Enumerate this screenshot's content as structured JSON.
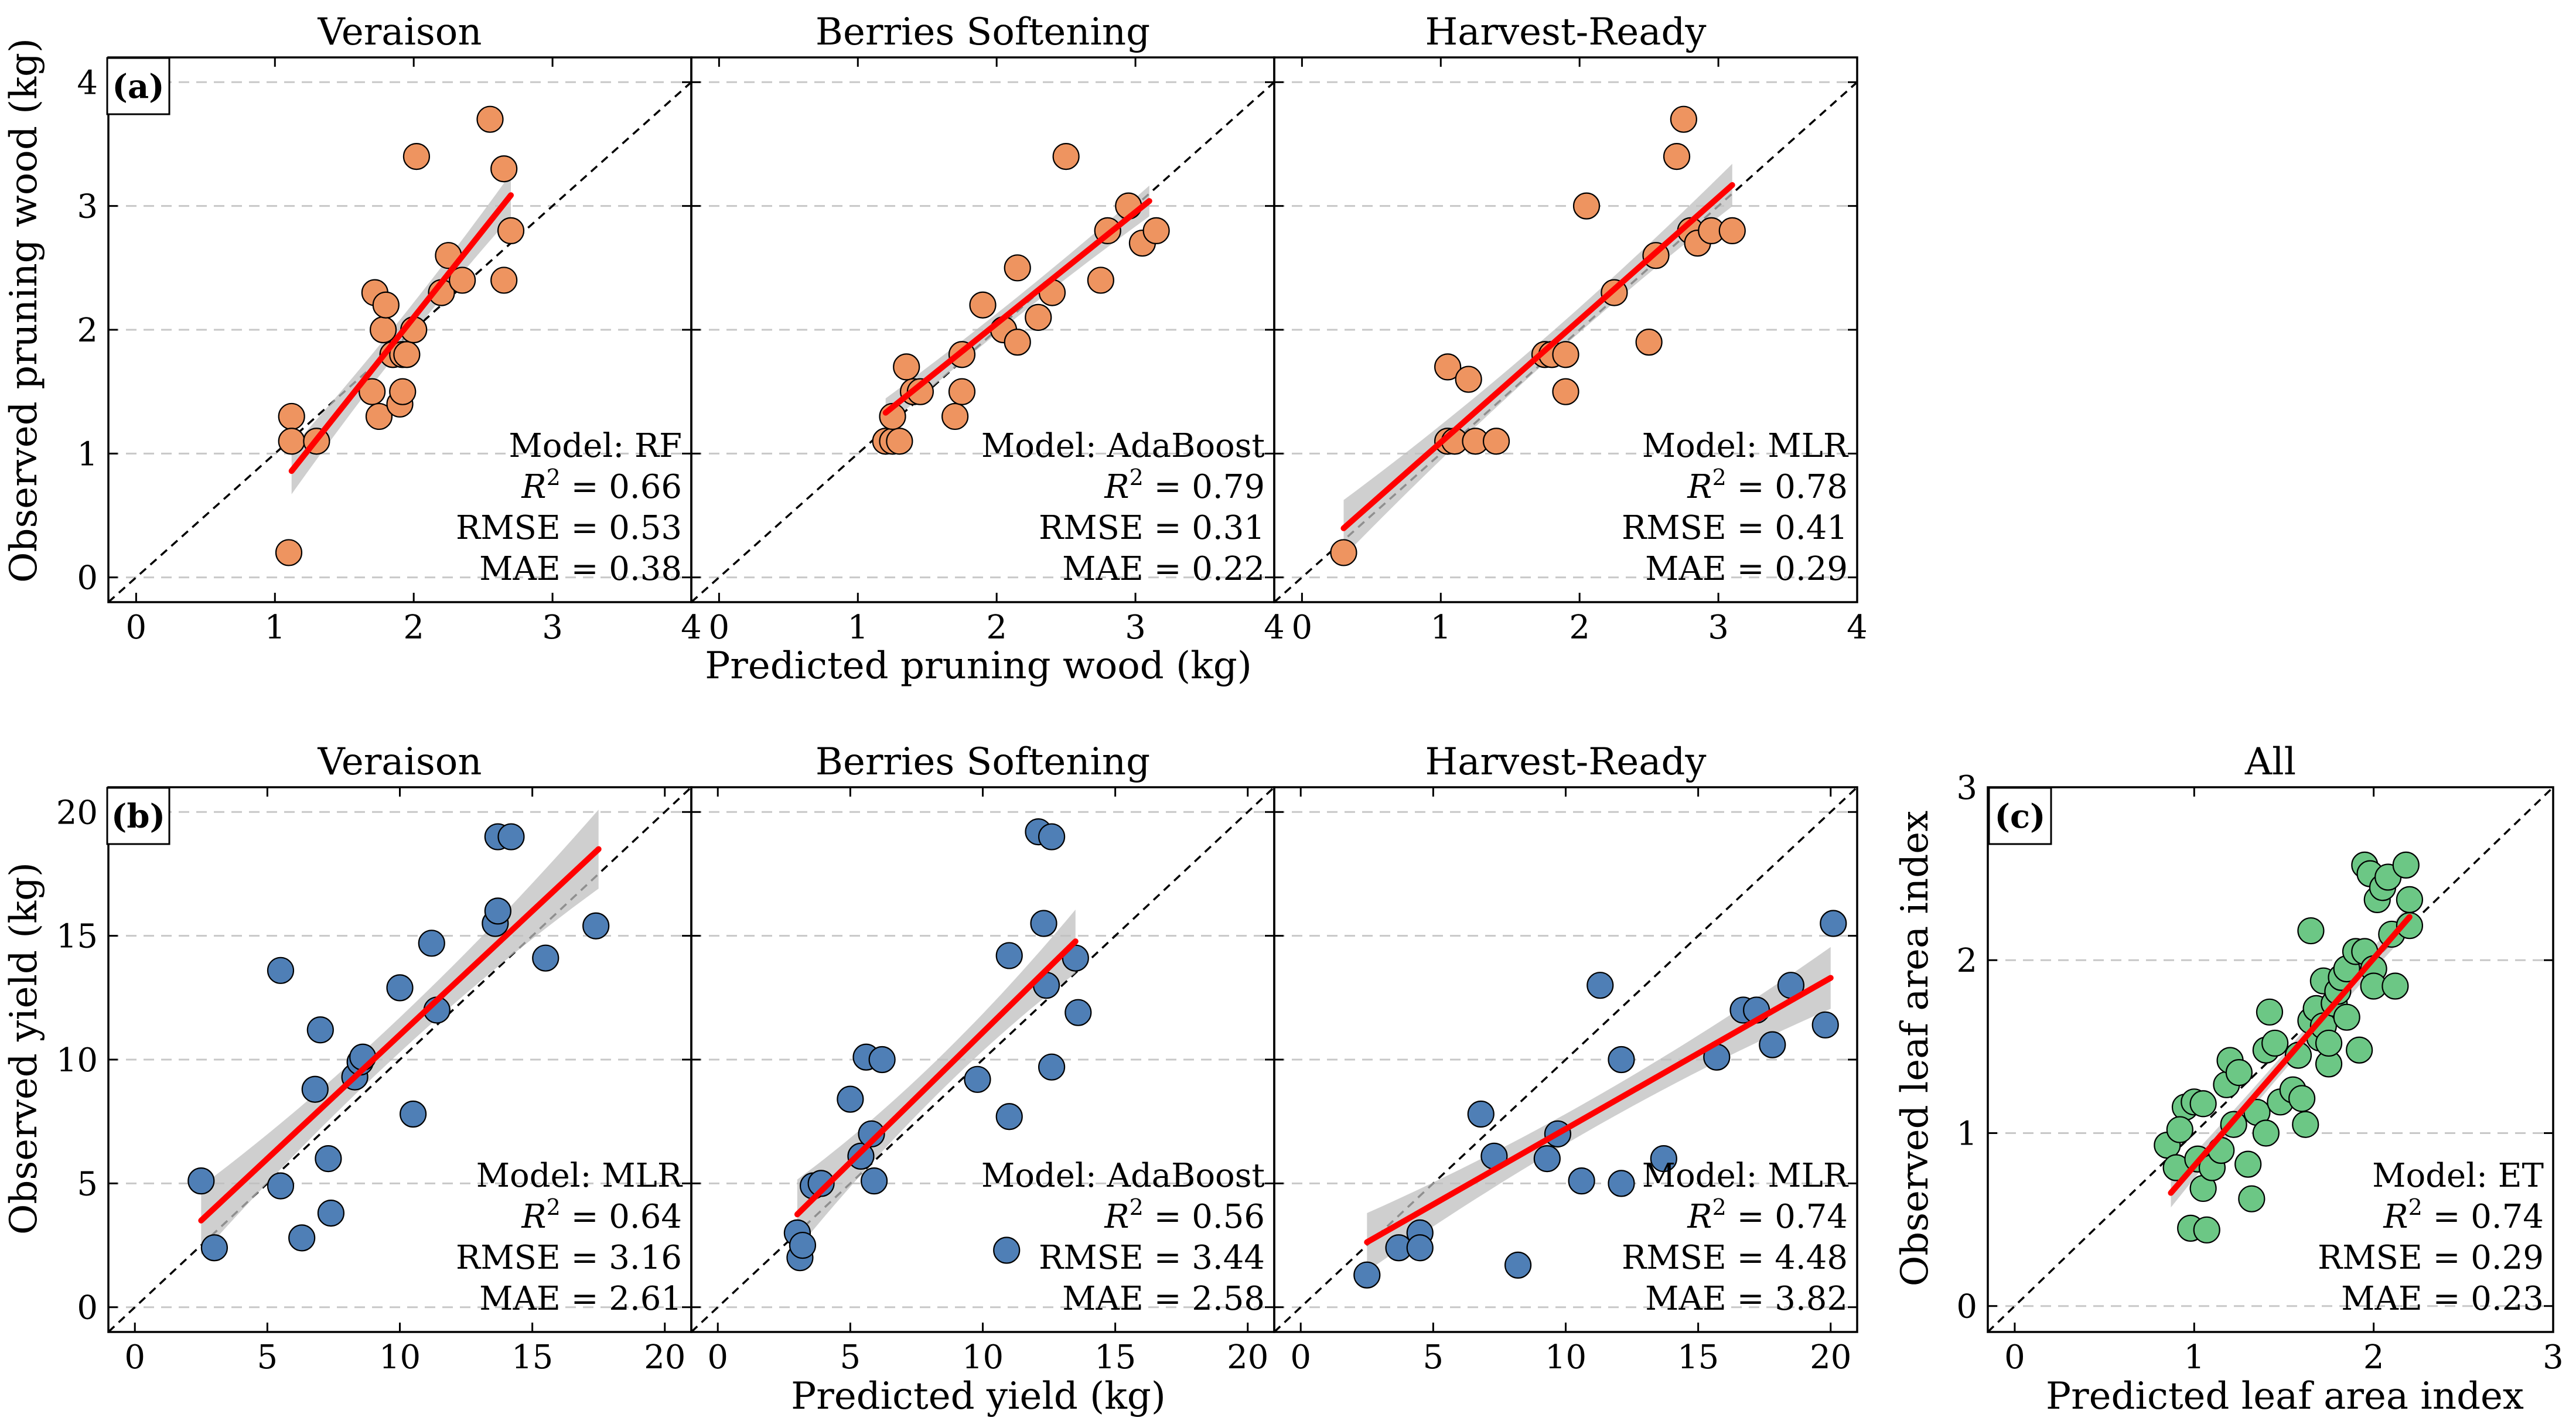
{
  "colors": {
    "orange": "#EE9460",
    "blue": "#4F7FB6",
    "green": "#6CC785",
    "fit_line": "#FF0000",
    "band": "#BFBFBF",
    "grid": "#C8C8C8"
  },
  "rows": [
    {
      "label": "(a)",
      "xlabel": "Predicted pruning wood (kg)",
      "ylabel": "Observed pruning wood (kg)"
    },
    {
      "label": "(b)",
      "xlabel": "Predicted yield (kg)",
      "ylabel": "Observed yield (kg)"
    }
  ],
  "panel_c": {
    "label": "(c)",
    "xlabel": "Predicted leaf area index",
    "ylabel": "Observed leaf area index"
  },
  "chart_data": [
    {
      "id": "a1",
      "type": "scatter",
      "title": "Veraison",
      "color": "orange",
      "xlim": [
        -0.2,
        4.0
      ],
      "ylim": [
        -0.2,
        4.2
      ],
      "xticks": [
        0,
        1,
        2,
        3,
        4
      ],
      "yticks": [
        0,
        1,
        2,
        3,
        4
      ],
      "model": "RF",
      "r2": "0.66",
      "rmse": "0.53",
      "mae": "0.38",
      "fit": {
        "x0": 1.12,
        "x1": 2.7,
        "slope": 1.41,
        "intercept": -0.72,
        "band_center": 1.95,
        "band_base": 0.12,
        "band_k": 0.22
      },
      "points": [
        [
          1.12,
          1.3
        ],
        [
          1.12,
          1.1
        ],
        [
          1.1,
          0.2
        ],
        [
          1.3,
          1.1
        ],
        [
          1.7,
          1.5
        ],
        [
          1.75,
          1.3
        ],
        [
          1.72,
          2.3
        ],
        [
          1.78,
          2.0
        ],
        [
          1.8,
          2.2
        ],
        [
          1.85,
          1.8
        ],
        [
          1.92,
          1.8
        ],
        [
          1.9,
          1.4
        ],
        [
          1.95,
          1.8
        ],
        [
          1.92,
          1.5
        ],
        [
          2.0,
          2.0
        ],
        [
          2.02,
          3.4
        ],
        [
          2.2,
          2.3
        ],
        [
          2.25,
          2.6
        ],
        [
          2.35,
          2.4
        ],
        [
          2.55,
          3.7
        ],
        [
          2.65,
          3.3
        ],
        [
          2.65,
          2.4
        ],
        [
          2.7,
          2.8
        ]
      ]
    },
    {
      "id": "a2",
      "type": "scatter",
      "title": "Berries Softening",
      "color": "orange",
      "xlim": [
        -0.2,
        4.0
      ],
      "ylim": [
        -0.2,
        4.2
      ],
      "xticks": [
        0,
        1,
        2,
        3,
        4
      ],
      "yticks": [
        0,
        1,
        2,
        3,
        4
      ],
      "model": "AdaBoost",
      "r2": "0.79",
      "rmse": "0.31",
      "mae": "0.22",
      "fit": {
        "x0": 1.2,
        "x1": 3.1,
        "slope": 0.9,
        "intercept": 0.25,
        "band_center": 2.1,
        "band_base": 0.08,
        "band_k": 0.12
      },
      "points": [
        [
          1.2,
          1.1
        ],
        [
          1.25,
          1.1
        ],
        [
          1.3,
          1.1
        ],
        [
          1.25,
          1.3
        ],
        [
          1.35,
          1.7
        ],
        [
          1.4,
          1.5
        ],
        [
          1.45,
          1.5
        ],
        [
          1.7,
          1.3
        ],
        [
          1.75,
          1.5
        ],
        [
          1.75,
          1.8
        ],
        [
          1.9,
          2.2
        ],
        [
          2.05,
          2.0
        ],
        [
          2.15,
          2.5
        ],
        [
          2.15,
          1.9
        ],
        [
          2.3,
          2.1
        ],
        [
          2.4,
          2.3
        ],
        [
          2.5,
          3.4
        ],
        [
          2.75,
          2.4
        ],
        [
          2.8,
          2.8
        ],
        [
          2.95,
          3.0
        ],
        [
          3.05,
          2.7
        ],
        [
          3.15,
          2.8
        ]
      ]
    },
    {
      "id": "a3",
      "type": "scatter",
      "title": "Harvest-Ready",
      "color": "orange",
      "xlim": [
        -0.2,
        4.0
      ],
      "ylim": [
        -0.2,
        4.2
      ],
      "xticks": [
        0,
        1,
        2,
        3,
        4
      ],
      "yticks": [
        0,
        1,
        2,
        3,
        4
      ],
      "model": "MLR",
      "r2": "0.78",
      "rmse": "0.41",
      "mae": "0.29",
      "fit": {
        "x0": 0.3,
        "x1": 3.1,
        "slope": 0.99,
        "intercept": 0.1,
        "band_center": 1.9,
        "band_base": 0.1,
        "band_k": 0.2
      },
      "points": [
        [
          0.3,
          0.2
        ],
        [
          1.05,
          1.7
        ],
        [
          1.05,
          1.1
        ],
        [
          1.1,
          1.1
        ],
        [
          1.2,
          1.6
        ],
        [
          1.25,
          1.1
        ],
        [
          1.4,
          1.1
        ],
        [
          1.75,
          1.8
        ],
        [
          1.8,
          1.8
        ],
        [
          1.9,
          1.8
        ],
        [
          1.9,
          1.5
        ],
        [
          2.05,
          3.0
        ],
        [
          2.25,
          2.3
        ],
        [
          2.5,
          1.9
        ],
        [
          2.55,
          2.6
        ],
        [
          2.7,
          3.4
        ],
        [
          2.75,
          3.7
        ],
        [
          2.8,
          2.8
        ],
        [
          2.85,
          2.7
        ],
        [
          2.95,
          2.8
        ],
        [
          3.1,
          2.8
        ]
      ]
    },
    {
      "id": "b1",
      "type": "scatter",
      "title": "Veraison",
      "color": "blue",
      "xlim": [
        -1,
        21
      ],
      "ylim": [
        -1,
        21
      ],
      "xticks": [
        0,
        5,
        10,
        15,
        20
      ],
      "yticks": [
        0,
        5,
        10,
        15,
        20
      ],
      "model": "MLR",
      "r2": "0.64",
      "rmse": "3.16",
      "mae": "2.61",
      "fit": {
        "x0": 2.5,
        "x1": 17.5,
        "slope": 1.0,
        "intercept": 1.0,
        "band_center": 9.5,
        "band_base": 0.7,
        "band_k": 0.3
      },
      "points": [
        [
          2.5,
          5.1
        ],
        [
          3.0,
          2.4
        ],
        [
          5.5,
          13.6
        ],
        [
          5.5,
          4.9
        ],
        [
          6.3,
          2.8
        ],
        [
          6.8,
          8.8
        ],
        [
          7.0,
          11.2
        ],
        [
          7.3,
          6.0
        ],
        [
          7.4,
          3.8
        ],
        [
          8.3,
          9.3
        ],
        [
          8.5,
          9.9
        ],
        [
          8.6,
          10.1
        ],
        [
          10.0,
          12.9
        ],
        [
          10.5,
          7.8
        ],
        [
          11.2,
          14.7
        ],
        [
          11.4,
          12.0
        ],
        [
          13.6,
          15.5
        ],
        [
          13.7,
          16.0
        ],
        [
          13.7,
          19.0
        ],
        [
          14.2,
          19.0
        ],
        [
          15.5,
          14.1
        ],
        [
          17.4,
          15.4
        ]
      ]
    },
    {
      "id": "b2",
      "type": "scatter",
      "title": "Berries Softening",
      "color": "blue",
      "xlim": [
        -1,
        21
      ],
      "ylim": [
        -1,
        21
      ],
      "xticks": [
        0,
        5,
        10,
        15,
        20
      ],
      "yticks": [
        0,
        5,
        10,
        15,
        20
      ],
      "model": "AdaBoost",
      "r2": "0.56",
      "rmse": "3.44",
      "mae": "2.58",
      "fit": {
        "x0": 3.0,
        "x1": 13.5,
        "slope": 1.05,
        "intercept": 0.6,
        "band_center": 8.5,
        "band_base": 0.7,
        "band_k": 0.35
      },
      "points": [
        [
          3.0,
          3.0
        ],
        [
          3.1,
          2.0
        ],
        [
          3.2,
          2.5
        ],
        [
          3.6,
          4.9
        ],
        [
          3.9,
          5.0
        ],
        [
          5.0,
          8.4
        ],
        [
          5.4,
          6.1
        ],
        [
          5.6,
          10.1
        ],
        [
          5.8,
          7.0
        ],
        [
          5.9,
          5.1
        ],
        [
          6.2,
          10.0
        ],
        [
          9.8,
          9.2
        ],
        [
          10.9,
          2.3
        ],
        [
          11.0,
          14.2
        ],
        [
          11.0,
          7.7
        ],
        [
          12.1,
          19.2
        ],
        [
          12.3,
          15.5
        ],
        [
          12.6,
          19.0
        ],
        [
          12.4,
          13.0
        ],
        [
          12.6,
          9.7
        ],
        [
          13.5,
          14.1
        ],
        [
          13.6,
          11.9
        ]
      ]
    },
    {
      "id": "b3",
      "type": "scatter",
      "title": "Harvest-Ready",
      "color": "blue",
      "xlim": [
        -1,
        21
      ],
      "ylim": [
        -1,
        21
      ],
      "xticks": [
        0,
        5,
        10,
        15,
        20
      ],
      "yticks": [
        0,
        5,
        10,
        15,
        20
      ],
      "model": "MLR",
      "r2": "0.74",
      "rmse": "4.48",
      "mae": "3.82",
      "fit": {
        "x0": 2.5,
        "x1": 20.0,
        "slope": 0.61,
        "intercept": 1.1,
        "band_center": 11.0,
        "band_base": 0.6,
        "band_k": 0.2
      },
      "points": [
        [
          2.5,
          1.3
        ],
        [
          3.7,
          2.4
        ],
        [
          4.5,
          3.0
        ],
        [
          4.5,
          2.4
        ],
        [
          6.8,
          7.8
        ],
        [
          7.3,
          6.1
        ],
        [
          8.2,
          1.7
        ],
        [
          9.3,
          6.0
        ],
        [
          9.7,
          7.0
        ],
        [
          10.6,
          5.1
        ],
        [
          11.3,
          13.0
        ],
        [
          12.1,
          10.0
        ],
        [
          12.1,
          5.0
        ],
        [
          13.7,
          6.0
        ],
        [
          15.7,
          10.1
        ],
        [
          16.7,
          12.0
        ],
        [
          17.2,
          12.0
        ],
        [
          17.8,
          10.6
        ],
        [
          18.5,
          13.0
        ],
        [
          19.8,
          11.4
        ],
        [
          20.1,
          15.5
        ]
      ]
    },
    {
      "id": "c",
      "type": "scatter",
      "title": "All",
      "color": "green",
      "xlim": [
        -0.15,
        3.0
      ],
      "ylim": [
        -0.15,
        3.0
      ],
      "xticks": [
        0,
        1,
        2,
        3
      ],
      "yticks": [
        0,
        1,
        2,
        3
      ],
      "model": "ET",
      "r2": "0.74",
      "rmse": "0.29",
      "mae": "0.23",
      "fit": {
        "x0": 0.87,
        "x1": 2.2,
        "slope": 1.2,
        "intercept": -0.39,
        "band_center": 1.55,
        "band_base": 0.05,
        "band_k": 0.14
      },
      "points": [
        [
          0.85,
          0.93
        ],
        [
          0.9,
          0.8
        ],
        [
          0.95,
          1.15
        ],
        [
          0.92,
          1.02
        ],
        [
          1.0,
          1.18
        ],
        [
          1.02,
          0.85
        ],
        [
          1.05,
          1.17
        ],
        [
          0.98,
          0.45
        ],
        [
          1.05,
          0.68
        ],
        [
          1.07,
          0.44
        ],
        [
          1.1,
          0.8
        ],
        [
          1.15,
          0.9
        ],
        [
          1.18,
          1.28
        ],
        [
          1.2,
          1.42
        ],
        [
          1.22,
          1.05
        ],
        [
          1.25,
          1.35
        ],
        [
          1.3,
          0.82
        ],
        [
          1.32,
          0.62
        ],
        [
          1.35,
          1.12
        ],
        [
          1.4,
          1.48
        ],
        [
          1.42,
          1.7
        ],
        [
          1.45,
          1.52
        ],
        [
          1.48,
          1.18
        ],
        [
          1.4,
          1.0
        ],
        [
          1.55,
          1.25
        ],
        [
          1.58,
          1.45
        ],
        [
          1.6,
          1.2
        ],
        [
          1.62,
          1.05
        ],
        [
          1.65,
          2.17
        ],
        [
          1.65,
          1.65
        ],
        [
          1.68,
          1.72
        ],
        [
          1.7,
          1.55
        ],
        [
          1.72,
          1.62
        ],
        [
          1.72,
          1.88
        ],
        [
          1.75,
          1.4
        ],
        [
          1.75,
          1.52
        ],
        [
          1.78,
          1.75
        ],
        [
          1.8,
          1.82
        ],
        [
          1.82,
          1.9
        ],
        [
          1.85,
          1.95
        ],
        [
          1.85,
          1.67
        ],
        [
          1.9,
          2.05
        ],
        [
          1.92,
          1.48
        ],
        [
          1.95,
          2.55
        ],
        [
          1.95,
          2.05
        ],
        [
          1.98,
          2.5
        ],
        [
          2.0,
          1.95
        ],
        [
          2.0,
          1.85
        ],
        [
          2.02,
          2.35
        ],
        [
          2.05,
          2.42
        ],
        [
          2.08,
          2.48
        ],
        [
          2.1,
          2.15
        ],
        [
          2.12,
          1.85
        ],
        [
          2.18,
          2.55
        ],
        [
          2.2,
          2.35
        ],
        [
          2.2,
          2.2
        ]
      ]
    }
  ]
}
